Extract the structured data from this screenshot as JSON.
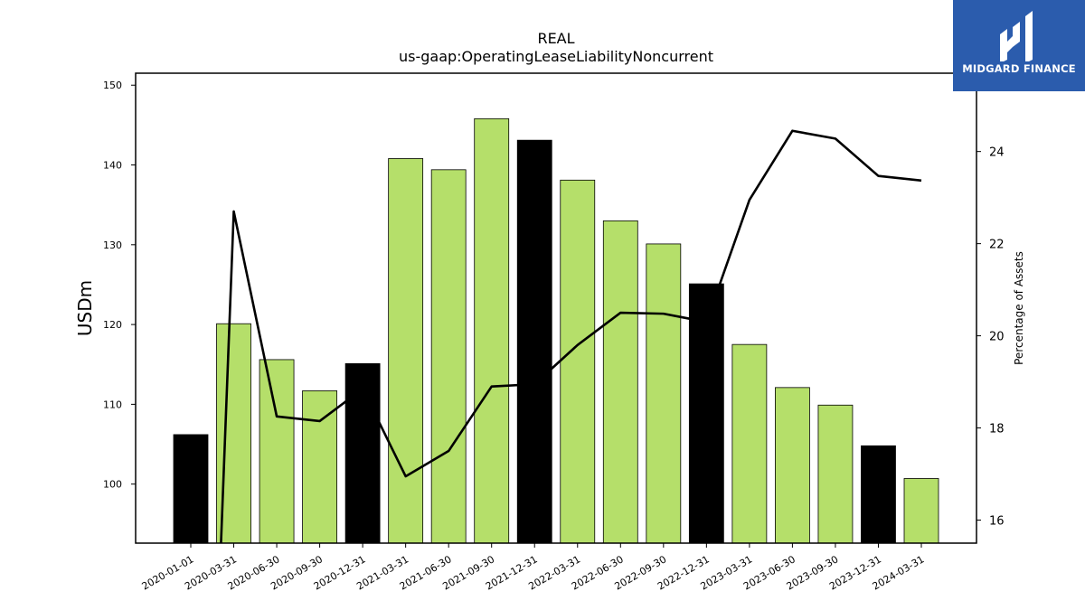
{
  "logo": {
    "text": "MIDGARD FINANCE"
  },
  "chart_data": {
    "type": "bar",
    "title": "REAL",
    "subtitle": "us-gaap:OperatingLeaseLiabilityNoncurrent",
    "ylabel": "USDm",
    "y2label": "Percentage of Assets",
    "ylim": [
      92.6,
      151.5
    ],
    "y2lim": [
      15.5,
      25.7
    ],
    "yticks": [
      100,
      110,
      120,
      130,
      140,
      150
    ],
    "y2ticks": [
      16,
      18,
      20,
      22,
      24
    ],
    "grid": false,
    "categories": [
      "2020-01-01",
      "2020-03-31",
      "2020-06-30",
      "2020-09-30",
      "2020-12-31",
      "2021-03-31",
      "2021-06-30",
      "2021-09-30",
      "2021-12-31",
      "2022-03-31",
      "2022-06-30",
      "2022-09-30",
      "2022-12-31",
      "2023-03-31",
      "2023-06-30",
      "2023-09-30",
      "2023-12-31",
      "2024-03-31"
    ],
    "series": [
      {
        "type": "bar",
        "axis": "left",
        "values": [
          106.2,
          120.1,
          115.6,
          111.7,
          115.1,
          140.8,
          139.4,
          145.8,
          143.1,
          138.1,
          133.0,
          130.1,
          125.1,
          117.5,
          112.1,
          109.9,
          104.8,
          100.7
        ],
        "highlight": [
          true,
          false,
          false,
          false,
          true,
          false,
          false,
          false,
          true,
          false,
          false,
          false,
          true,
          false,
          false,
          false,
          true,
          false
        ]
      },
      {
        "type": "line",
        "axis": "right",
        "values": [
          null,
          22.7,
          18.25,
          18.15,
          18.85,
          16.95,
          17.5,
          18.9,
          18.95,
          19.8,
          20.5,
          20.48,
          20.3,
          22.95,
          24.45,
          24.28,
          23.47,
          23.37
        ],
        "start_below_axis": true
      }
    ],
    "colors": {
      "bar": "#b5df6a",
      "highlight": "#000000",
      "line": "#000000"
    }
  }
}
